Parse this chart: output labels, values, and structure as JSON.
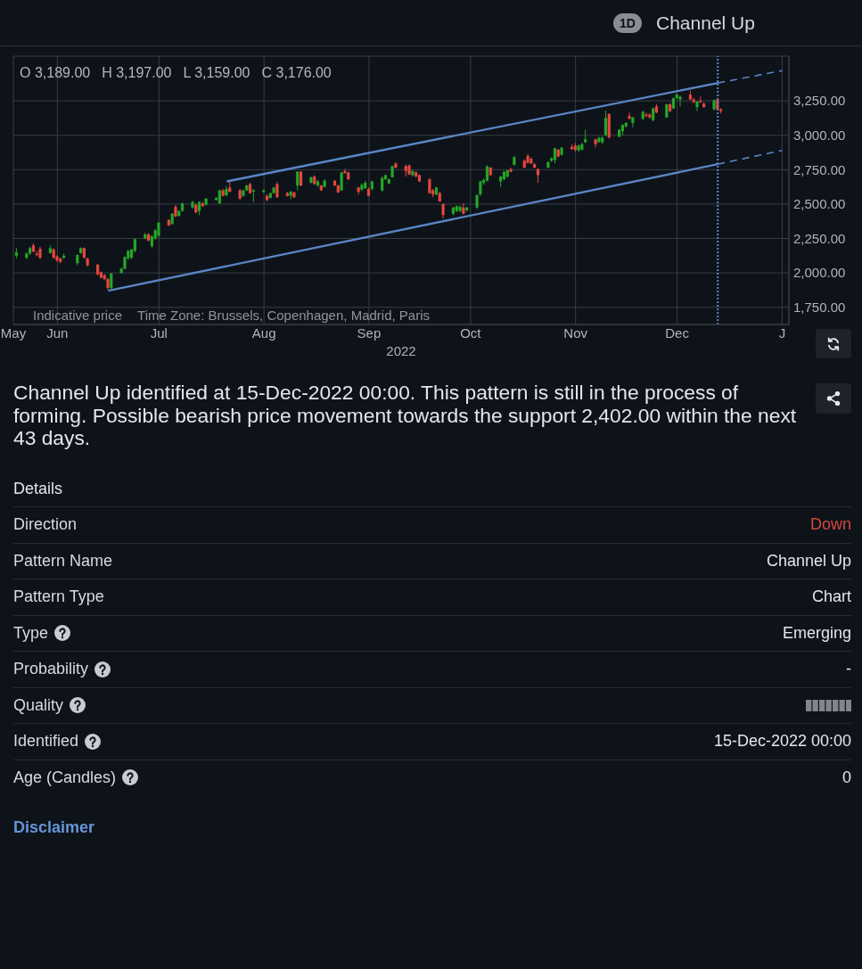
{
  "chart_data": [
    {
      "type": "candlestick",
      "title": "Channel Up",
      "subtitle": "1D",
      "xlabel": "2022",
      "x": [
        "2022-05-20",
        "2022-05-23",
        "2022-05-24",
        "2022-05-25",
        "2022-05-26",
        "2022-05-27",
        "2022-05-30",
        "2022-05-31",
        "2022-06-01",
        "2022-06-02",
        "2022-06-03",
        "2022-06-07",
        "2022-06-08",
        "2022-06-09",
        "2022-06-10",
        "2022-06-13",
        "2022-06-14",
        "2022-06-15",
        "2022-06-16",
        "2022-06-17",
        "2022-06-20",
        "2022-06-21",
        "2022-06-22",
        "2022-06-23",
        "2022-06-24",
        "2022-06-27",
        "2022-06-28",
        "2022-06-29",
        "2022-06-30",
        "2022-07-01",
        "2022-07-04",
        "2022-07-05",
        "2022-07-06",
        "2022-07-07",
        "2022-07-08",
        "2022-07-11",
        "2022-07-12",
        "2022-07-13",
        "2022-07-14",
        "2022-07-15",
        "2022-07-18",
        "2022-07-19",
        "2022-07-20",
        "2022-07-21",
        "2022-07-22",
        "2022-07-25",
        "2022-07-26",
        "2022-07-27",
        "2022-07-28",
        "2022-07-29",
        "2022-08-01",
        "2022-08-02",
        "2022-08-03",
        "2022-08-04",
        "2022-08-05",
        "2022-08-08",
        "2022-08-09",
        "2022-08-10",
        "2022-08-11",
        "2022-08-12",
        "2022-08-15",
        "2022-08-16",
        "2022-08-17",
        "2022-08-18",
        "2022-08-19",
        "2022-08-22",
        "2022-08-23",
        "2022-08-24",
        "2022-08-25",
        "2022-08-26",
        "2022-08-29",
        "2022-08-30",
        "2022-08-31",
        "2022-09-01",
        "2022-09-02",
        "2022-09-05",
        "2022-09-06",
        "2022-09-07",
        "2022-09-08",
        "2022-09-09",
        "2022-09-12",
        "2022-09-13",
        "2022-09-14",
        "2022-09-15",
        "2022-09-16",
        "2022-09-19",
        "2022-09-20",
        "2022-09-21",
        "2022-09-22",
        "2022-09-23",
        "2022-09-26",
        "2022-09-27",
        "2022-09-28",
        "2022-09-29",
        "2022-09-30",
        "2022-10-03",
        "2022-10-04",
        "2022-10-05",
        "2022-10-06",
        "2022-10-07",
        "2022-10-10",
        "2022-10-11",
        "2022-10-12",
        "2022-10-13",
        "2022-10-14",
        "2022-10-17",
        "2022-10-18",
        "2022-10-19",
        "2022-10-20",
        "2022-10-21",
        "2022-10-24",
        "2022-10-25",
        "2022-10-26",
        "2022-10-27",
        "2022-10-28",
        "2022-10-31",
        "2022-11-01",
        "2022-11-02",
        "2022-11-03",
        "2022-11-04",
        "2022-11-07",
        "2022-11-08",
        "2022-11-09",
        "2022-11-10",
        "2022-11-11",
        "2022-11-14",
        "2022-11-15",
        "2022-11-16",
        "2022-11-17",
        "2022-11-18",
        "2022-11-21",
        "2022-11-22",
        "2022-11-23",
        "2022-11-24",
        "2022-11-25",
        "2022-11-28",
        "2022-11-29",
        "2022-11-30",
        "2022-12-01",
        "2022-12-02",
        "2022-12-05",
        "2022-12-06",
        "2022-12-07",
        "2022-12-08",
        "2022-12-09",
        "2022-12-12",
        "2022-12-13",
        "2022-12-14"
      ],
      "ohlc": [
        [
          2125,
          2180,
          2105,
          2150
        ],
        [
          2110,
          2150,
          2100,
          2140
        ],
        [
          2140,
          2190,
          2130,
          2180
        ],
        [
          2200,
          2215,
          2150,
          2155
        ],
        [
          2140,
          2160,
          2120,
          2130
        ],
        [
          2175,
          2190,
          2100,
          2110
        ],
        [
          2145,
          2200,
          2140,
          2180
        ],
        [
          2170,
          2180,
          2100,
          2110
        ],
        [
          2120,
          2130,
          2080,
          2090
        ],
        [
          2105,
          2110,
          2070,
          2080
        ],
        [
          2110,
          2140,
          2100,
          2125
        ],
        [
          2070,
          2135,
          2055,
          2130
        ],
        [
          2145,
          2185,
          2140,
          2180
        ],
        [
          2180,
          2185,
          2105,
          2110
        ],
        [
          2105,
          2110,
          2045,
          2055
        ],
        [
          2060,
          2065,
          1980,
          1990
        ],
        [
          2005,
          2010,
          1960,
          1965
        ],
        [
          1985,
          1990,
          1945,
          1955
        ],
        [
          1955,
          1965,
          1875,
          1890
        ],
        [
          1890,
          2000,
          1880,
          1995
        ],
        [
          2000,
          2040,
          1995,
          2030
        ],
        [
          2030,
          2120,
          2025,
          2115
        ],
        [
          2105,
          2170,
          2095,
          2160
        ],
        [
          2110,
          2175,
          2100,
          2170
        ],
        [
          2160,
          2250,
          2150,
          2245
        ],
        [
          2250,
          2290,
          2245,
          2280
        ],
        [
          2280,
          2290,
          2230,
          2235
        ],
        [
          2195,
          2275,
          2180,
          2265
        ],
        [
          2250,
          2320,
          2240,
          2310
        ],
        [
          2270,
          2370,
          2260,
          2365
        ],
        [
          2385,
          2390,
          2340,
          2345
        ],
        [
          2355,
          2435,
          2350,
          2430
        ],
        [
          2480,
          2495,
          2405,
          2410
        ],
        [
          2415,
          2455,
          2410,
          2450
        ],
        [
          2450,
          2510,
          2445,
          2505
        ],
        [
          2475,
          2525,
          2465,
          2515
        ],
        [
          2495,
          2505,
          2430,
          2440
        ],
        [
          2450,
          2520,
          2420,
          2515
        ],
        [
          2505,
          2515,
          2480,
          2485
        ],
        [
          2495,
          2545,
          2490,
          2540
        ],
        [
          2530,
          2550,
          2525,
          2545
        ],
        [
          2505,
          2605,
          2500,
          2600
        ],
        [
          2600,
          2610,
          2555,
          2560
        ],
        [
          2565,
          2630,
          2555,
          2610
        ],
        [
          2620,
          2665,
          2585,
          2590
        ],
        [
          2600,
          2610,
          2530,
          2540
        ],
        [
          2560,
          2605,
          2550,
          2600
        ],
        [
          2600,
          2640,
          2595,
          2635
        ],
        [
          2645,
          2655,
          2575,
          2580
        ],
        [
          2590,
          2610,
          2515,
          2600
        ],
        [
          2590,
          2605,
          2580,
          2600
        ],
        [
          2560,
          2570,
          2520,
          2530
        ],
        [
          2545,
          2585,
          2540,
          2580
        ],
        [
          2580,
          2625,
          2575,
          2620
        ],
        [
          2645,
          2660,
          2545,
          2550
        ],
        [
          2580,
          2590,
          2555,
          2560
        ],
        [
          2560,
          2595,
          2535,
          2590
        ],
        [
          2585,
          2590,
          2545,
          2550
        ],
        [
          2635,
          2740,
          2600,
          2735
        ],
        [
          2735,
          2740,
          2630,
          2635
        ],
        [
          2655,
          2700,
          2650,
          2695
        ],
        [
          2700,
          2710,
          2640,
          2645
        ],
        [
          2635,
          2675,
          2625,
          2665
        ],
        [
          2635,
          2640,
          2595,
          2600
        ],
        [
          2625,
          2680,
          2620,
          2670
        ],
        [
          2670,
          2675,
          2630,
          2635
        ],
        [
          2635,
          2640,
          2580,
          2585
        ],
        [
          2600,
          2735,
          2595,
          2730
        ],
        [
          2740,
          2755,
          2720,
          2725
        ],
        [
          2730,
          2735,
          2675,
          2680
        ],
        [
          2620,
          2625,
          2570,
          2590
        ],
        [
          2605,
          2650,
          2595,
          2640
        ],
        [
          2615,
          2670,
          2610,
          2655
        ],
        [
          2610,
          2620,
          2555,
          2560
        ],
        [
          2610,
          2670,
          2600,
          2665
        ],
        [
          2600,
          2700,
          2590,
          2690
        ],
        [
          2680,
          2715,
          2675,
          2710
        ],
        [
          2650,
          2685,
          2645,
          2680
        ],
        [
          2695,
          2780,
          2690,
          2775
        ],
        [
          2795,
          2805,
          2760,
          2765
        ],
        [
          2775,
          2790,
          2700,
          2740
        ],
        [
          2780,
          2790,
          2710,
          2715
        ],
        [
          2710,
          2750,
          2700,
          2740
        ],
        [
          2730,
          2740,
          2695,
          2700
        ],
        [
          2710,
          2715,
          2660,
          2665
        ],
        [
          2680,
          2690,
          2575,
          2580
        ],
        [
          2600,
          2610,
          2550,
          2570
        ],
        [
          2570,
          2625,
          2565,
          2620
        ],
        [
          2580,
          2590,
          2515,
          2520
        ],
        [
          2500,
          2505,
          2395,
          2420
        ],
        [
          2430,
          2480,
          2420,
          2475
        ],
        [
          2450,
          2490,
          2440,
          2485
        ],
        [
          2450,
          2490,
          2440,
          2480
        ],
        [
          2475,
          2505,
          2425,
          2430
        ],
        [
          2455,
          2480,
          2445,
          2475
        ],
        [
          2475,
          2570,
          2465,
          2565
        ],
        [
          2570,
          2670,
          2560,
          2665
        ],
        [
          2655,
          2685,
          2640,
          2675
        ],
        [
          2670,
          2780,
          2665,
          2775
        ],
        [
          2765,
          2770,
          2705,
          2710
        ],
        [
          2665,
          2705,
          2625,
          2700
        ],
        [
          2680,
          2740,
          2675,
          2735
        ],
        [
          2700,
          2750,
          2690,
          2745
        ],
        [
          2755,
          2765,
          2730,
          2735
        ],
        [
          2785,
          2850,
          2780,
          2840
        ],
        [
          2815,
          2825,
          2760,
          2765
        ],
        [
          2850,
          2865,
          2795,
          2800
        ],
        [
          2830,
          2840,
          2790,
          2795
        ],
        [
          2790,
          2800,
          2760,
          2765
        ],
        [
          2755,
          2760,
          2655,
          2710
        ],
        [
          2765,
          2810,
          2760,
          2805
        ],
        [
          2815,
          2840,
          2805,
          2835
        ],
        [
          2820,
          2910,
          2795,
          2905
        ],
        [
          2895,
          2900,
          2840,
          2845
        ],
        [
          2860,
          2915,
          2850,
          2910
        ],
        [
          2915,
          2935,
          2895,
          2900
        ],
        [
          2925,
          2945,
          2880,
          2895
        ],
        [
          2890,
          2935,
          2880,
          2925
        ],
        [
          2895,
          2945,
          2890,
          2935
        ],
        [
          2950,
          3040,
          2945,
          2970
        ],
        [
          2970,
          2975,
          2910,
          2935
        ],
        [
          2950,
          2990,
          2945,
          2980
        ],
        [
          2950,
          2990,
          2935,
          2985
        ],
        [
          3000,
          3180,
          2995,
          3125
        ],
        [
          3155,
          3160,
          2975,
          2985
        ],
        [
          2990,
          3045,
          2985,
          3040
        ],
        [
          3030,
          3080,
          3000,
          3075
        ],
        [
          3065,
          3095,
          3055,
          3090
        ],
        [
          3140,
          3165,
          3115,
          3120
        ],
        [
          3090,
          3135,
          3060,
          3130
        ],
        [
          3120,
          3180,
          3110,
          3170
        ],
        [
          3150,
          3165,
          3130,
          3140
        ],
        [
          3150,
          3160,
          3120,
          3130
        ],
        [
          3110,
          3200,
          3100,
          3195
        ],
        [
          3210,
          3225,
          3160,
          3165
        ],
        [
          3130,
          3230,
          3125,
          3225
        ],
        [
          3225,
          3235,
          3170,
          3175
        ],
        [
          3195,
          3275,
          3190,
          3270
        ],
        [
          3270,
          3305,
          3265,
          3295
        ],
        [
          3260,
          3290,
          3210,
          3280
        ],
        [
          3295,
          3325,
          3255,
          3260
        ],
        [
          3260,
          3275,
          3235,
          3240
        ],
        [
          3205,
          3250,
          3175,
          3245
        ],
        [
          3250,
          3280,
          3235,
          3240
        ],
        [
          3230,
          3240,
          3200,
          3205
        ],
        [
          3190,
          3260,
          3180,
          3255
        ],
        [
          3260,
          3265,
          3180,
          3190
        ],
        [
          3189,
          3197,
          3159,
          3176
        ]
      ],
      "colors": [
        "#26a626",
        "#26a626",
        "#26a626",
        "#e5463e",
        "#e5463e",
        "#e5463e",
        "#26a626",
        "#e5463e",
        "#e5463e",
        "#e5463e",
        "#26a626",
        "#26a626",
        "#26a626",
        "#e5463e",
        "#e5463e",
        "#e5463e",
        "#e5463e",
        "#e5463e",
        "#e5463e",
        "#26a626",
        "#26a626",
        "#26a626",
        "#26a626",
        "#26a626",
        "#26a626",
        "#26a626",
        "#e5463e",
        "#26a626",
        "#26a626",
        "#26a626",
        "#e5463e",
        "#26a626",
        "#e5463e",
        "#26a626",
        "#26a626",
        "#26a626",
        "#e5463e",
        "#26a626",
        "#e5463e",
        "#26a626",
        "#26a626",
        "#26a626",
        "#e5463e",
        "#26a626",
        "#e5463e",
        "#e5463e",
        "#26a626",
        "#26a626",
        "#e5463e",
        "#26a626",
        "#26a626",
        "#e5463e",
        "#26a626",
        "#26a626",
        "#e5463e",
        "#e5463e",
        "#26a626",
        "#e5463e",
        "#26a626",
        "#e5463e",
        "#26a626",
        "#e5463e",
        "#26a626",
        "#e5463e",
        "#26a626",
        "#e5463e",
        "#e5463e",
        "#26a626",
        "#e5463e",
        "#e5463e",
        "#e5463e",
        "#26a626",
        "#26a626",
        "#e5463e",
        "#26a626",
        "#26a626",
        "#26a626",
        "#26a626",
        "#26a626",
        "#e5463e",
        "#e5463e",
        "#e5463e",
        "#26a626",
        "#e5463e",
        "#e5463e",
        "#e5463e",
        "#e5463e",
        "#26a626",
        "#e5463e",
        "#e5463e",
        "#26a626",
        "#26a626",
        "#26a626",
        "#e5463e",
        "#26a626",
        "#26a626",
        "#26a626",
        "#26a626",
        "#26a626",
        "#e5463e",
        "#26a626",
        "#26a626",
        "#26a626",
        "#e5463e",
        "#26a626",
        "#e5463e",
        "#e5463e",
        "#e5463e",
        "#e5463e",
        "#e5463e",
        "#26a626",
        "#26a626",
        "#26a626",
        "#e5463e",
        "#26a626",
        "#e5463e",
        "#e5463e",
        "#26a626",
        "#26a626",
        "#26a626",
        "#e5463e",
        "#26a626",
        "#26a626",
        "#26a626",
        "#e5463e",
        "#26a626",
        "#26a626",
        "#26a626",
        "#e5463e",
        "#26a626",
        "#26a626",
        "#e5463e",
        "#e5463e",
        "#26a626",
        "#e5463e",
        "#26a626",
        "#e5463e",
        "#26a626",
        "#26a626",
        "#26a626",
        "#e5463e",
        "#e5463e",
        "#26a626",
        "#e5463e",
        "#e5463e",
        "#26a626",
        "#e5463e",
        "#e5463e"
      ],
      "series": [
        {
          "type": "line",
          "x": [
            "2022-07-21",
            "2022-12-13"
          ],
          "values": [
            2665,
            3380
          ],
          "color": "#5a86c5"
        },
        {
          "type": "line",
          "x": [
            "2022-12-13",
            "2023-01-01"
          ],
          "values": [
            3380,
            3470
          ],
          "color": "#5a86c5",
          "line_style": "dashed"
        },
        {
          "type": "line",
          "x": [
            "2022-06-16",
            "2022-12-13"
          ],
          "values": [
            1870,
            2790
          ],
          "color": "#5a86c5"
        },
        {
          "type": "line",
          "x": [
            "2022-12-13",
            "2023-01-01"
          ],
          "values": [
            2790,
            2890
          ],
          "color": "#5a86c5",
          "line_style": "dashed"
        }
      ],
      "ref_lines": [
        {
          "axis": "x",
          "value": "2022-12-13",
          "color": "#5a86c5",
          "line_style": "dotted"
        }
      ],
      "xlim": [
        "2022-05-19",
        "2023-01-03"
      ],
      "xticks": [
        {
          "value": "2022-05-19",
          "label": "May"
        },
        {
          "value": "2022-06-01",
          "label": "Jun"
        },
        {
          "value": "2022-07-01",
          "label": "Jul"
        },
        {
          "value": "2022-08-01",
          "label": "Aug"
        },
        {
          "value": "2022-09-01",
          "label": "Sep"
        },
        {
          "value": "2022-10-01",
          "label": "Oct"
        },
        {
          "value": "2022-11-01",
          "label": "Nov"
        },
        {
          "value": "2022-12-01",
          "label": "Dec"
        },
        {
          "value": "2023-01-01",
          "label": "J"
        }
      ],
      "ylim": [
        1625,
        3575
      ],
      "yticks": [
        {
          "value": 1750,
          "label": "1,750.00"
        },
        {
          "value": 2000,
          "label": "2,000.00"
        },
        {
          "value": 2250,
          "label": "2,250.00"
        },
        {
          "value": 2500,
          "label": "2,500.00"
        },
        {
          "value": 2750,
          "label": "2,750.00"
        },
        {
          "value": 3000,
          "label": "3,000.00"
        },
        {
          "value": 3250,
          "label": "3,250.00"
        }
      ],
      "grid": true,
      "annotations": [
        "O 3,189.00",
        "H 3,197.00",
        "L 3,159.00",
        "C 3,176.00",
        "Indicative price",
        "Time Zone: Brussels, Copenhagen, Madrid, Paris",
        "Channel Up identified at 15-Dec-2022 00:00. This pattern is still in the process of forming. Possible bearish price movement towards the support 2,402.00 within the next 43 days."
      ]
    },
    {
      "type": "other",
      "title": "Details",
      "annotations": [
        "Direction",
        "Down",
        "Pattern Name",
        "Channel Up",
        "Pattern Type",
        "Chart",
        "Type",
        "Emerging",
        "Probability",
        "-",
        "Quality",
        "Identified",
        "15-Dec-2022 00:00",
        "Age (Candles)",
        "0",
        "Disclaimer"
      ]
    }
  ]
}
